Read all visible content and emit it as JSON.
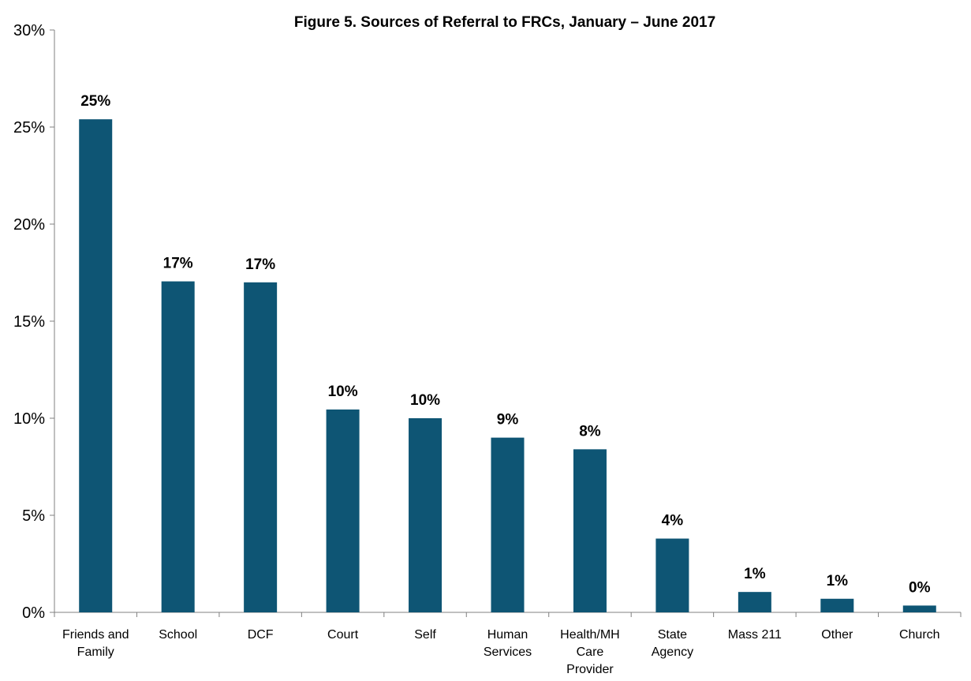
{
  "chart_data": {
    "type": "bar",
    "title": "Figure 5. Sources of Referral to FRCs, January – June 2017",
    "xlabel": "",
    "ylabel": "",
    "categories": [
      [
        "Friends and",
        "Family"
      ],
      [
        "School"
      ],
      [
        "DCF"
      ],
      [
        "Court"
      ],
      [
        "Self"
      ],
      [
        "Human",
        "Services"
      ],
      [
        "Health/MH",
        "Care",
        "Provider"
      ],
      [
        "State",
        "Agency"
      ],
      [
        "Mass 211"
      ],
      [
        "Other"
      ],
      [
        "Church"
      ]
    ],
    "values": [
      25.4,
      17.05,
      17.0,
      10.45,
      10.0,
      9.0,
      8.4,
      3.8,
      1.05,
      0.7,
      0.35
    ],
    "data_labels": [
      "25%",
      "17%",
      "17%",
      "10%",
      "10%",
      "9%",
      "8%",
      "4%",
      "1%",
      "1%",
      "0%"
    ],
    "ylim": [
      0,
      30
    ],
    "yticks": [
      {
        "value": 0,
        "label": "0%"
      },
      {
        "value": 5,
        "label": "5%"
      },
      {
        "value": 10,
        "label": "10%"
      },
      {
        "value": 15,
        "label": "15%"
      },
      {
        "value": 20,
        "label": "20%"
      },
      {
        "value": 25,
        "label": "25%"
      },
      {
        "value": 30,
        "label": "30%"
      }
    ],
    "bar_color": "#0e5574",
    "grid": false,
    "legend": "none"
  }
}
